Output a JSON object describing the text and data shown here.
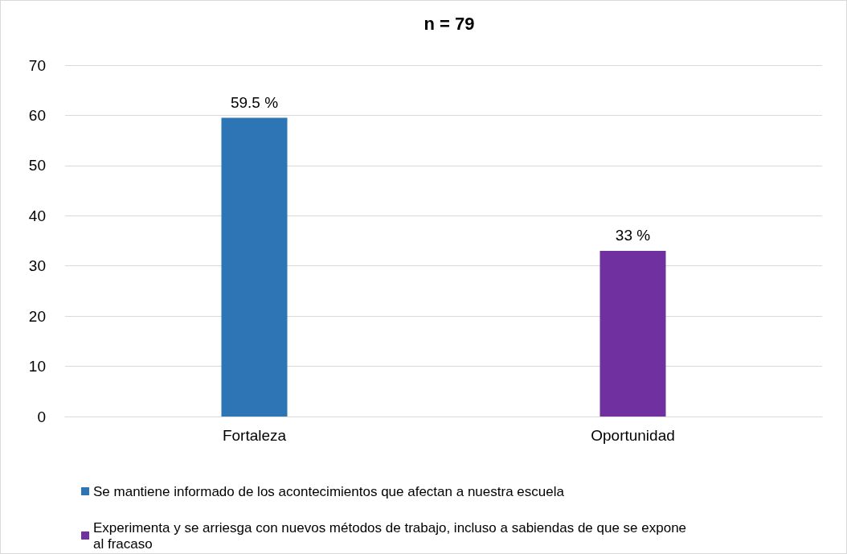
{
  "chart_data": {
    "type": "bar",
    "title": "n = 79",
    "categories": [
      "Fortaleza",
      "Oportunidad"
    ],
    "series": [
      {
        "name": "Se mantiene informado de los acontecimientos que afectan a nuestra escuela",
        "color": "#2e75b6",
        "values": [
          59.5,
          null
        ],
        "value_labels": [
          "59.5 %",
          null
        ]
      },
      {
        "name": "Experimenta y se arriesga con nuevos métodos de trabajo, incluso a sabiendas de que se expone al fracaso",
        "color": "#7030a0",
        "values": [
          null,
          33
        ],
        "value_labels": [
          null,
          "33 %"
        ]
      }
    ],
    "ylim": [
      0,
      70
    ],
    "yticks": [
      0,
      10,
      20,
      30,
      40,
      50,
      60,
      70
    ],
    "grid": "y",
    "legend": "bottom left"
  }
}
